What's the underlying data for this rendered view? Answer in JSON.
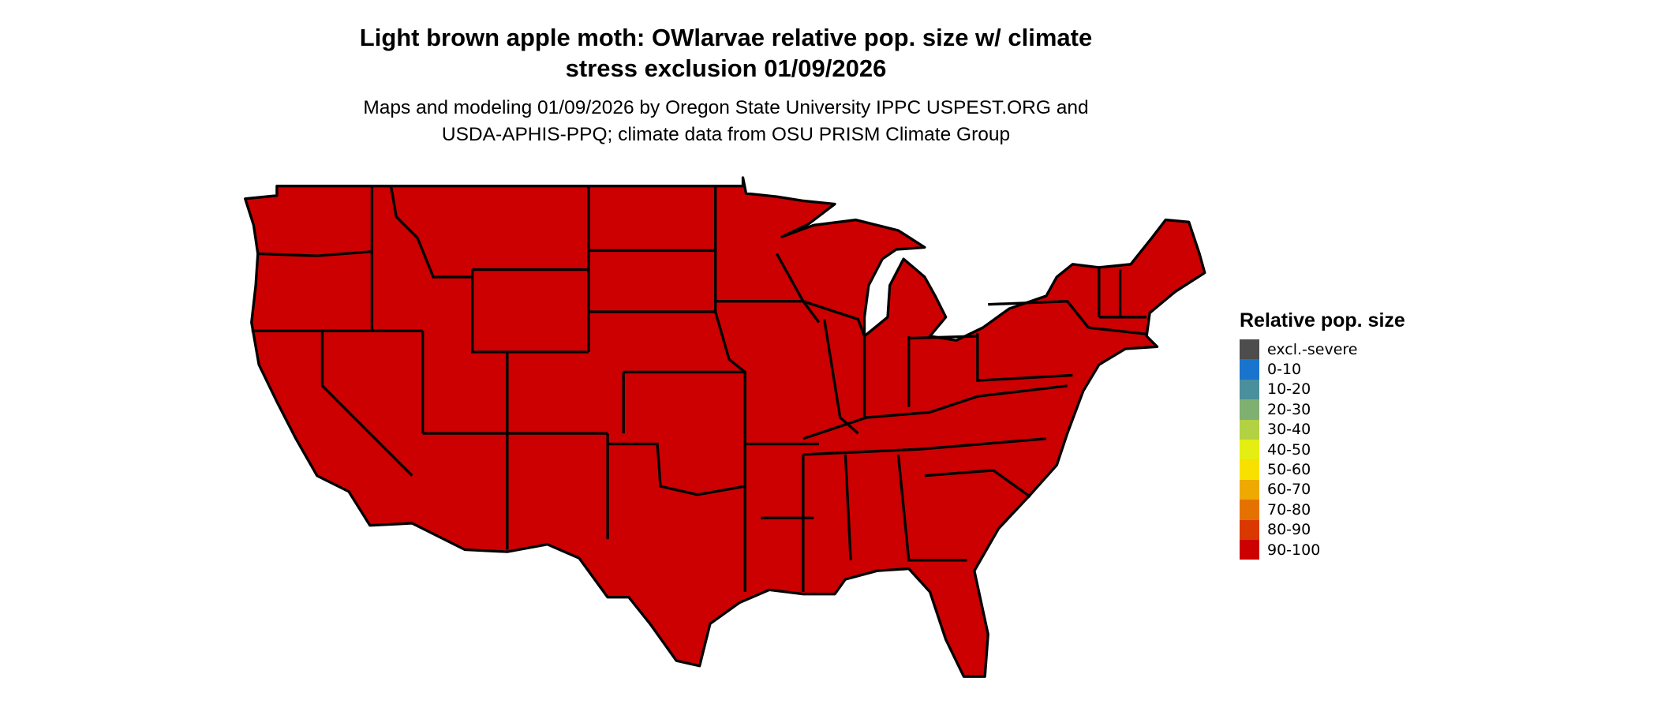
{
  "title": {
    "line1": "Light brown apple moth: OWlarvae relative pop. size w/ climate",
    "line2": "stress exclusion 01/09/2026"
  },
  "subtitle": {
    "line1": "Maps and modeling 01/09/2026 by Oregon State University IPPC USPEST.ORG and",
    "line2": "USDA-APHIS-PPQ; climate data from OSU PRISM Climate Group"
  },
  "map": {
    "region": "Contiguous United States",
    "fill_class": "90-100",
    "fill_color": "#CC0000",
    "border_color": "#000000"
  },
  "legend": {
    "title": "Relative pop. size",
    "items": [
      {
        "label": "excl.-severe",
        "color": "#4D4D4D"
      },
      {
        "label": "0-10",
        "color": "#1874CD"
      },
      {
        "label": "10-20",
        "color": "#4A8F9C"
      },
      {
        "label": "20-30",
        "color": "#7FB072"
      },
      {
        "label": "30-40",
        "color": "#B2D143"
      },
      {
        "label": "40-50",
        "color": "#E5EE13"
      },
      {
        "label": "50-60",
        "color": "#F8E000"
      },
      {
        "label": "60-70",
        "color": "#EEAA00"
      },
      {
        "label": "70-80",
        "color": "#E57200"
      },
      {
        "label": "80-90",
        "color": "#DB3800"
      },
      {
        "label": "90-100",
        "color": "#CC0000"
      }
    ]
  }
}
